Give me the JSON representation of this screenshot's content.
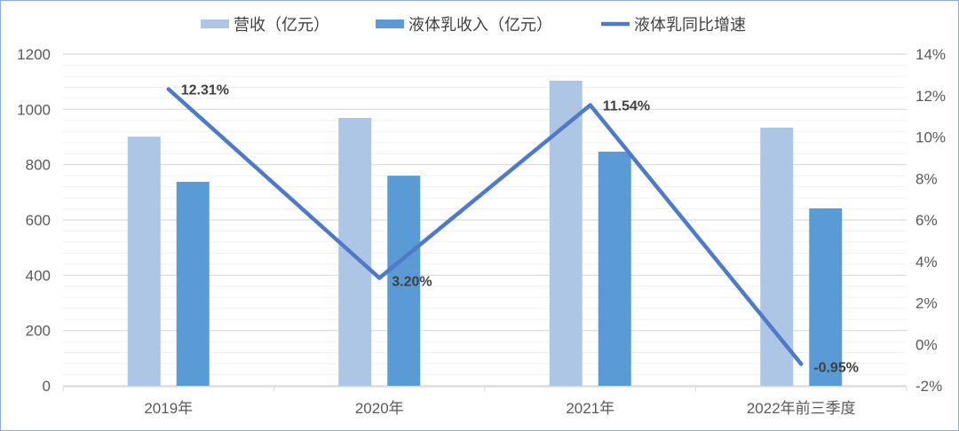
{
  "chart_data": {
    "type": "bar+line",
    "categories": [
      "2019年",
      "2020年",
      "2021年",
      "2022年前三季度"
    ],
    "series": [
      {
        "name": "营收（亿元）",
        "type": "bar",
        "axis": "left",
        "color": "#adc6e5",
        "values": [
          901,
          969,
          1104,
          934
        ]
      },
      {
        "name": "液体乳收入（亿元）",
        "type": "bar",
        "axis": "left",
        "color": "#5b9bd5",
        "values": [
          738,
          760,
          847,
          642
        ]
      },
      {
        "name": "液体乳同比增速",
        "type": "line",
        "axis": "right",
        "color": "#4f7ac7",
        "values": [
          12.31,
          3.2,
          11.54,
          -0.95
        ],
        "data_labels": [
          "12.31%",
          "3.20%",
          "11.54%",
          "-0.95%"
        ]
      }
    ],
    "left_axis": {
      "range": [
        0,
        1200
      ],
      "ticks": [
        "0",
        "200",
        "400",
        "600",
        "800",
        "1000",
        "1200"
      ]
    },
    "right_axis": {
      "range": [
        -2,
        14
      ],
      "ticks": [
        "-2%",
        "0%",
        "2%",
        "4%",
        "6%",
        "8%",
        "10%",
        "12%",
        "14%"
      ]
    },
    "grid": true,
    "legend": "top"
  }
}
